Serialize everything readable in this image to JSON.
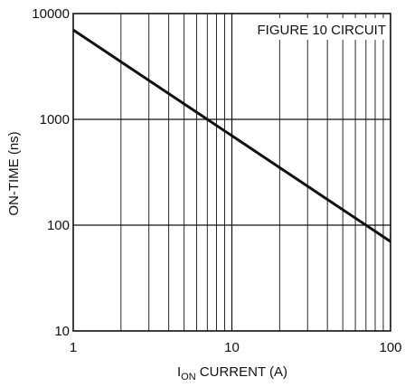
{
  "chart_data": {
    "type": "line",
    "title": "",
    "annotation": "FIGURE 10 CIRCUIT",
    "xlabel": {
      "main": "I",
      "subscript": "ON",
      "rest": " CURRENT (A)"
    },
    "ylabel": "ON-TIME (ns)",
    "xscale": "log",
    "yscale": "log",
    "xlim": [
      1,
      100
    ],
    "ylim": [
      10,
      10000
    ],
    "grid": true,
    "xticks": [
      {
        "value": 1,
        "label": "1"
      },
      {
        "value": 10,
        "label": "10"
      },
      {
        "value": 100,
        "label": "100"
      }
    ],
    "yticks": [
      {
        "value": 10,
        "label": "10"
      },
      {
        "value": 100,
        "label": "100"
      },
      {
        "value": 1000,
        "label": "1000"
      },
      {
        "value": 10000,
        "label": "10000"
      }
    ],
    "series": [
      {
        "x": [
          1,
          100
        ],
        "y": [
          7000,
          70
        ]
      }
    ]
  }
}
